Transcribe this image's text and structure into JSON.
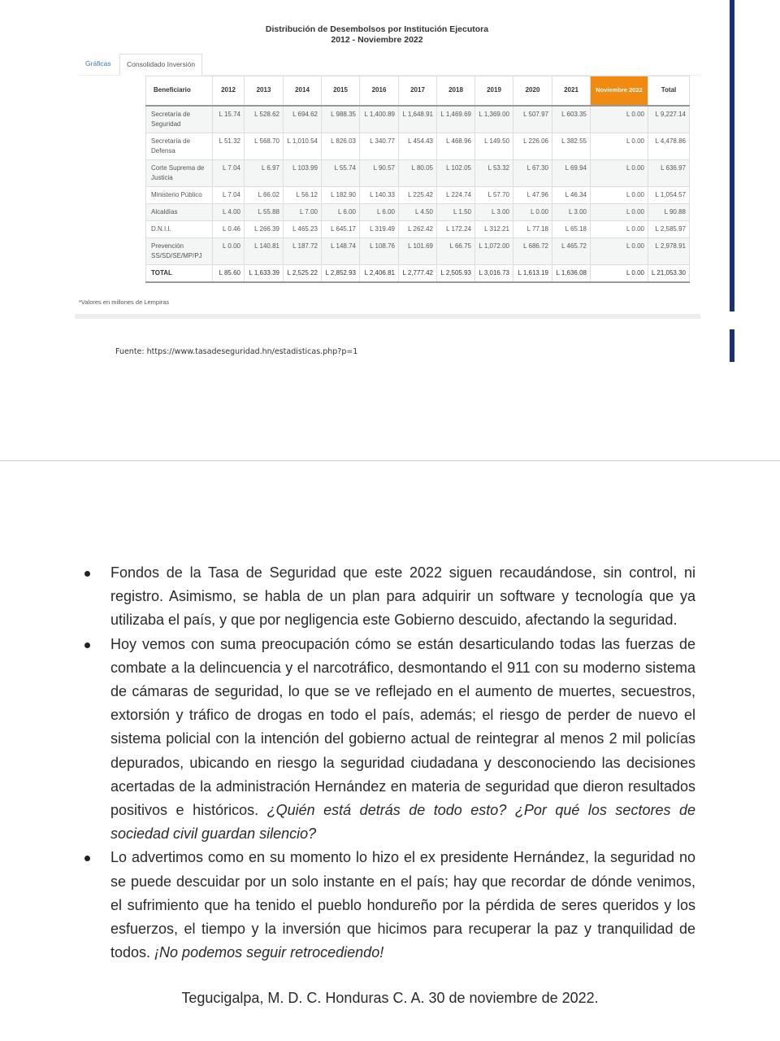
{
  "embedded": {
    "title_line1": "Distribución de Desembolsos por Institución Ejecutora",
    "title_line2": "2012 - Noviembre 2022",
    "tabs": [
      "Gráficas",
      "Consolidado Inversión"
    ],
    "columns": [
      "Beneficiario",
      "2012",
      "2013",
      "2014",
      "2015",
      "2016",
      "2017",
      "2018",
      "2019",
      "2020",
      "2021",
      "Noviembre 2022",
      "Total"
    ],
    "rows": [
      [
        "Secretaría de Seguridad",
        "L 15.74",
        "L 528.62",
        "L 694.62",
        "L 988.35",
        "L 1,400.89",
        "L 1,648.91",
        "L 1,469.69",
        "L 1,369.00",
        "L 507.97",
        "L 603.35",
        "L 0.00",
        "L 9,227.14"
      ],
      [
        "Secretaría de Defensa",
        "L 51.32",
        "L 568.70",
        "L 1,010.54",
        "L 826.03",
        "L 340.77",
        "L 454.43",
        "L 468.96",
        "L 149.50",
        "L 226.06",
        "L 382.55",
        "L 0.00",
        "L 4,478.86"
      ],
      [
        "Corte Suprema de Justicia",
        "L 7.04",
        "L 6.97",
        "L 103.99",
        "L 55.74",
        "L 90.57",
        "L 80.05",
        "L 102.05",
        "L 53.32",
        "L 67.30",
        "L 69.94",
        "L 0.00",
        "L 636.97"
      ],
      [
        "Ministerio Público",
        "L 7.04",
        "L 66.02",
        "L 56.12",
        "L 182.90",
        "L 140.33",
        "L 225.42",
        "L 224.74",
        "L 57.70",
        "L 47.96",
        "L 46.34",
        "L 0.00",
        "L 1,054.57"
      ],
      [
        "Alcaldías",
        "L 4.00",
        "L 55.88",
        "L 7.00",
        "L 6.00",
        "L 6.00",
        "L 4.50",
        "L 1.50",
        "L 3.00",
        "L 0.00",
        "L 3.00",
        "L 0.00",
        "L 90.88"
      ],
      [
        "D.N.I.I.",
        "L 0.46",
        "L 266.39",
        "L 465.23",
        "L 645.17",
        "L 319.49",
        "L 262.42",
        "L 172.24",
        "L 312.21",
        "L 77.18",
        "L 65.18",
        "L 0.00",
        "L 2,585.97"
      ],
      [
        "Prevención SS/SD/SE/MP/PJ",
        "L 0.00",
        "L 140.81",
        "L 187.72",
        "L 148.74",
        "L 108.76",
        "L 101.69",
        "L 66.75",
        "L 1,072.00",
        "L 686.72",
        "L 465.72",
        "L 0.00",
        "L 2,978.91"
      ],
      [
        "TOTAL",
        "L 85.60",
        "L 1,633.39",
        "L 2,525.22",
        "L 2,852.93",
        "L 2,406.81",
        "L 2,777.42",
        "L 2,505.93",
        "L 3,016.73",
        "L 1,613.19",
        "L 1,636.08",
        "L 0.00",
        "L 21,053.30"
      ]
    ],
    "note": "*Valores en millones de Lempiras",
    "accent": "#f08a10"
  },
  "source": "Fuente: https://www.tasadeseguridad.hn/estadisticas.php?p=1",
  "bullets": [
    {
      "text": "Fondos de la Tasa de Seguridad que este 2022 siguen recaudándose, sin control, ni registro. Asimismo, se habla de un plan para adquirir un software y tecnología que ya utilizaba el país, y que por negligencia este Gobierno descuido, afectando la seguridad.",
      "italic": ""
    },
    {
      "text": "Hoy vemos con suma preocupación cómo se están desarticulando todas las fuerzas de combate a la delincuencia y el narcotráfico, desmontando el 911 con su moderno sistema de cámaras de seguridad, lo que se ve reflejado en el aumento de muertes, secuestros, extorsión y tráfico de drogas en todo el país, además; el riesgo de perder de nuevo el sistema policial con la intención del gobierno actual de reintegrar al menos 2 mil policías depurados, ubicando en riesgo la seguridad ciudadana y desconociendo las decisiones acertadas de la administración Hernández en materia de seguridad que dieron resultados positivos e históricos. ",
      "italic": "¿Quién está detrás de todo esto? ¿Por qué los sectores de sociedad civil guardan silencio?"
    },
    {
      "text": "Lo advertimos como en su momento lo hizo el ex presidente Hernández, la seguridad no se puede descuidar por un solo instante en el país; hay que recordar de dónde venimos, el sufrimiento que ha tenido el pueblo hondureño por la pérdida de seres queridos y los esfuerzos, el tiempo y la inversión que hicimos para recuperar la paz y tranquilidad de todos. ",
      "italic": "¡No podemos seguir retrocediendo!"
    }
  ],
  "footer": "Tegucigalpa, M. D. C. Honduras C. A. 30 de noviembre de 2022."
}
